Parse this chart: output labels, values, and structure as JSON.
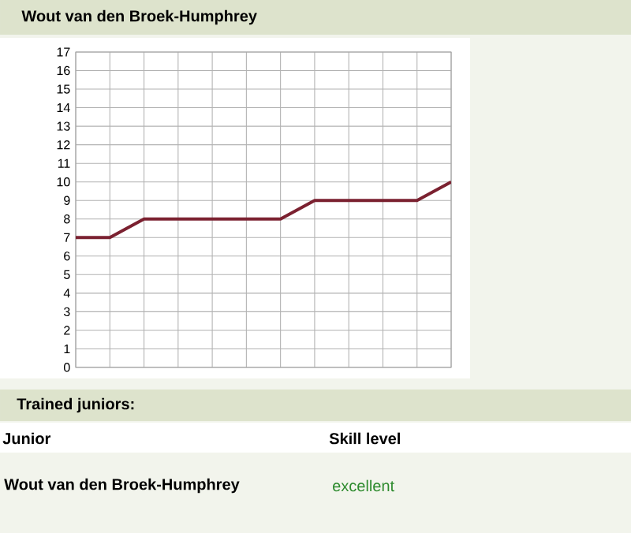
{
  "chart_data": {
    "type": "line",
    "title": "Wout van den Broek-Humphrey",
    "categories": [
      null,
      null,
      null,
      null,
      null,
      null,
      null,
      null,
      null,
      null,
      null,
      null
    ],
    "values": [
      7,
      7,
      8,
      8,
      8,
      8,
      8,
      9,
      9,
      9,
      9,
      10
    ],
    "color": "#7b2130",
    "ylim": [
      0,
      17
    ],
    "yticks": [
      0,
      1,
      2,
      3,
      4,
      5,
      6,
      7,
      8,
      9,
      10,
      11,
      12,
      13,
      14,
      15,
      16,
      17
    ],
    "grid": true,
    "tick_labels": "y",
    "marker": "none",
    "line_style": "solid",
    "annotations": [
      "Trained juniors:",
      "Junior",
      "Skill level",
      "Wout van den Broek-Humphrey",
      "excellent"
    ]
  }
}
